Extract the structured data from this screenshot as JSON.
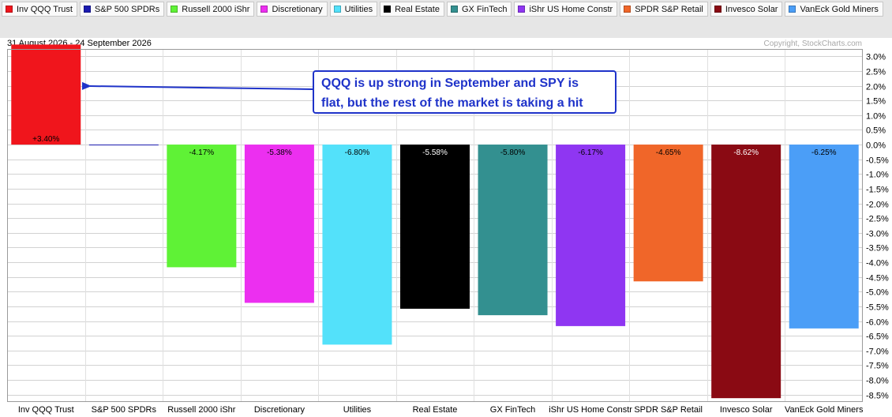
{
  "header": {
    "date_range": "31 August 2026 - 24 September 2026",
    "copyright": "Copyright, StockCharts.com"
  },
  "annotation": {
    "text": "QQQ is up strong in September and SPY is\nflat, but the rest of the market is taking a hit",
    "color": "#1f33c9"
  },
  "legend": [
    {
      "label": "Inv QQQ Trust",
      "color": "#f0151c"
    },
    {
      "label": "S&P 500 SPDRs",
      "color": "#1b1bb0"
    },
    {
      "label": "Russell 2000 iShr",
      "color": "#5ff236"
    },
    {
      "label": "Discretionary",
      "color": "#ec2ff0"
    },
    {
      "label": "Utilities",
      "color": "#53e1fa"
    },
    {
      "label": "Real Estate",
      "color": "#000000"
    },
    {
      "label": "GX FinTech",
      "color": "#339090"
    },
    {
      "label": "iShr US Home Constr",
      "color": "#8f36f2"
    },
    {
      "label": "SPDR S&P Retail",
      "color": "#f06629"
    },
    {
      "label": "Invesco Solar",
      "color": "#8a0a13"
    },
    {
      "label": "VanEck Gold Miners",
      "color": "#4b9ef7"
    }
  ],
  "chart_data": {
    "type": "bar",
    "categories": [
      "Inv QQQ Trust",
      "S&P 500 SPDRs",
      "Russell 2000 iShr",
      "Discretionary",
      "Utilities",
      "Real Estate",
      "GX FinTech",
      "iShr US Home Constr",
      "SPDR S&P Retail",
      "Invesco Solar",
      "VanEck Gold Miners"
    ],
    "values": [
      3.4,
      -0.02,
      -4.17,
      -5.38,
      -6.8,
      -5.58,
      -5.8,
      -6.17,
      -4.65,
      -8.62,
      -6.25
    ],
    "data_labels": [
      "+3.40%",
      "",
      "-4.17%",
      "-5.38%",
      "-6.80%",
      "-5.58%",
      "-5.80%",
      "-6.17%",
      "-4.65%",
      "-8.62%",
      "-6.25%"
    ],
    "colors": [
      "#f0151c",
      "#1b1bb0",
      "#5ff236",
      "#ec2ff0",
      "#53e1fa",
      "#000000",
      "#339090",
      "#8f36f2",
      "#f06629",
      "#8a0a13",
      "#4b9ef7"
    ],
    "ylim": [
      -8.75,
      3.25
    ],
    "yticks": [
      3.0,
      2.5,
      2.0,
      1.5,
      1.0,
      0.5,
      0.0,
      -0.5,
      -1.0,
      -1.5,
      -2.0,
      -2.5,
      -3.0,
      -3.5,
      -4.0,
      -4.5,
      -5.0,
      -5.5,
      -6.0,
      -6.5,
      -7.0,
      -7.5,
      -8.0,
      -8.5
    ],
    "ytick_labels": [
      "3.0%",
      "2.5%",
      "2.0%",
      "1.5%",
      "1.0%",
      "0.5%",
      "0.0%",
      "-0.5%",
      "-1.0%",
      "-1.5%",
      "-2.0%",
      "-2.5%",
      "-3.0%",
      "-3.5%",
      "-4.0%",
      "-4.5%",
      "-5.0%",
      "-5.5%",
      "-6.0%",
      "-6.5%",
      "-7.0%",
      "-7.5%",
      "-8.0%",
      "-8.5%"
    ],
    "y_axis_position": "right",
    "grid": true,
    "legend_position": "top"
  }
}
